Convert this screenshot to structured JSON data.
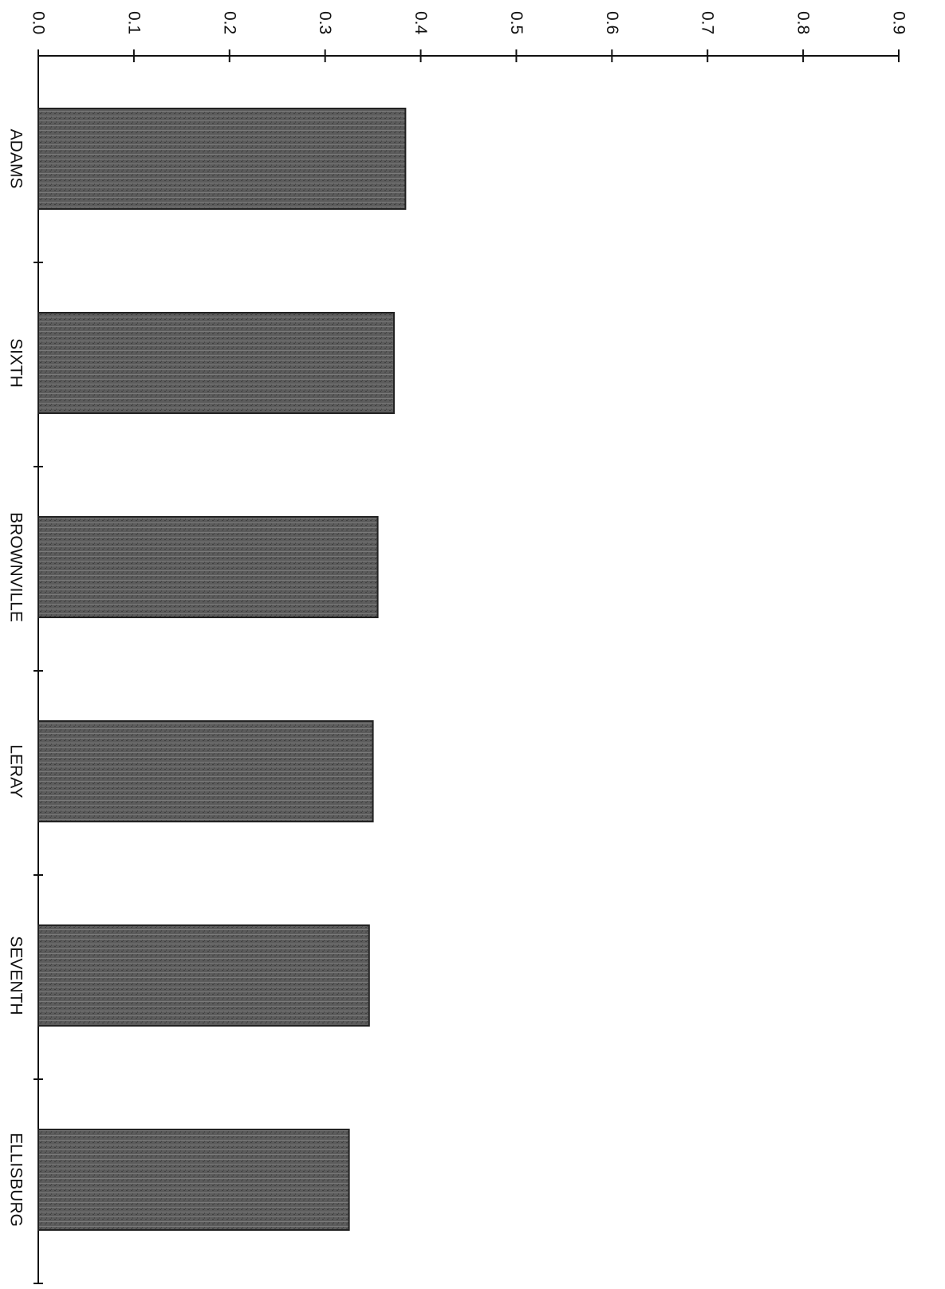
{
  "chart_data": {
    "type": "bar",
    "orientation": "horizontal",
    "rotated": "page rotated 90 degrees clockwise",
    "categories": [
      "ADAMS",
      "SIXTH",
      "BROWNVILLE",
      "LERAY",
      "SEVENTH",
      "ELLISBURG"
    ],
    "values": [
      0.384,
      0.372,
      0.355,
      0.35,
      0.346,
      0.325
    ],
    "title": "",
    "xlabel": "",
    "ylabel": "",
    "xlim": [
      0.0,
      0.9
    ],
    "ticks": [
      "0.0",
      "0.1",
      "0.2",
      "0.3",
      "0.4",
      "0.5",
      "0.6",
      "0.7",
      "0.8",
      "0.9"
    ],
    "grid": false,
    "legend": "none",
    "bar_color": "#5a5a5a"
  }
}
